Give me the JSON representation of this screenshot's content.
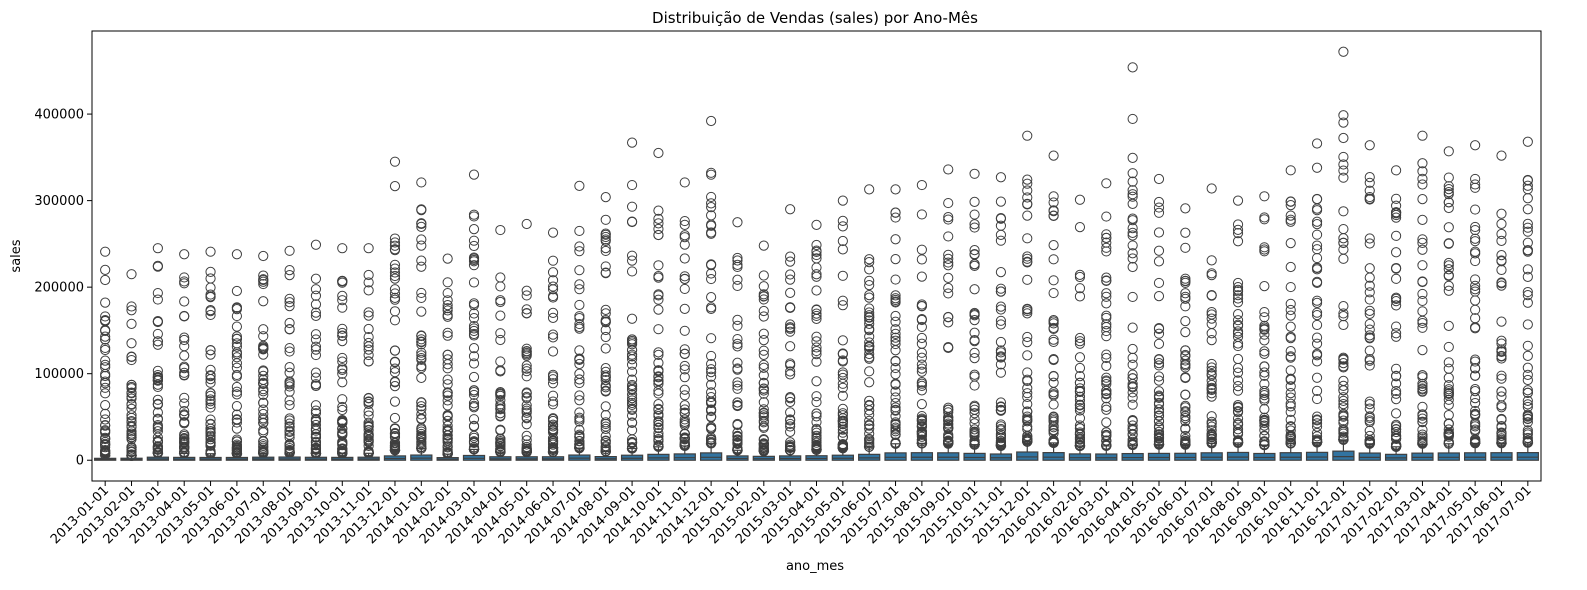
{
  "chart_data": {
    "type": "box",
    "title": "Distribuição de Vendas (sales) por Ano-Mês",
    "xlabel": "ano_mes",
    "ylabel": "sales",
    "ylim": [
      -24000,
      496000
    ],
    "yticks": [
      0,
      100000,
      200000,
      300000,
      400000
    ],
    "ytick_labels": [
      "0",
      "100000",
      "200000",
      "300000",
      "400000"
    ],
    "grid": false,
    "legend": "none",
    "box_color": "#3274a1",
    "line_color": "#3f3f3f",
    "categories": [
      "2013-01-01",
      "2013-02-01",
      "2013-03-01",
      "2013-04-01",
      "2013-05-01",
      "2013-06-01",
      "2013-07-01",
      "2013-08-01",
      "2013-09-01",
      "2013-10-01",
      "2013-11-01",
      "2013-12-01",
      "2014-01-01",
      "2014-02-01",
      "2014-03-01",
      "2014-04-01",
      "2014-05-01",
      "2014-06-01",
      "2014-07-01",
      "2014-08-01",
      "2014-09-01",
      "2014-10-01",
      "2014-11-01",
      "2014-12-01",
      "2015-01-01",
      "2015-02-01",
      "2015-03-01",
      "2015-04-01",
      "2015-05-01",
      "2015-06-01",
      "2015-07-01",
      "2015-08-01",
      "2015-09-01",
      "2015-10-01",
      "2015-11-01",
      "2015-12-01",
      "2016-01-01",
      "2016-02-01",
      "2016-03-01",
      "2016-04-01",
      "2016-05-01",
      "2016-06-01",
      "2016-07-01",
      "2016-08-01",
      "2016-09-01",
      "2016-10-01",
      "2016-11-01",
      "2016-12-01",
      "2017-01-01",
      "2017-02-01",
      "2017-03-01",
      "2017-04-01",
      "2017-05-01",
      "2017-06-01",
      "2017-07-01"
    ],
    "max_outlier": [
      241000,
      215000,
      245000,
      238000,
      241000,
      238000,
      236000,
      242000,
      249000,
      245000,
      245000,
      345000,
      321000,
      233000,
      330000,
      266000,
      273000,
      263000,
      317000,
      304000,
      367000,
      355000,
      321000,
      392000,
      275000,
      248000,
      290000,
      272000,
      300000,
      313000,
      313000,
      318000,
      336000,
      331000,
      327000,
      375000,
      352000,
      301000,
      320000,
      454000,
      325000,
      291000,
      314000,
      300000,
      305000,
      335000,
      366000,
      472000,
      364000,
      335000,
      375000,
      357000,
      364000,
      352000,
      368000
    ],
    "q3": [
      2200,
      2300,
      3500,
      3300,
      3200,
      3200,
      3500,
      3700,
      3400,
      3300,
      3500,
      5000,
      6000,
      3000,
      5500,
      4000,
      4000,
      4000,
      6000,
      4200,
      5800,
      6800,
      7300,
      8500,
      5000,
      4500,
      5000,
      5200,
      5800,
      6800,
      8500,
      8700,
      8600,
      7900,
      7200,
      9500,
      8800,
      7300,
      7200,
      7700,
      7900,
      8000,
      8600,
      9000,
      7800,
      8700,
      9100,
      10500,
      8300,
      6800,
      8200,
      8400,
      8600,
      8700,
      8800
    ],
    "whisker_hi": [
      5000,
      5200,
      8000,
      7800,
      7500,
      7400,
      8000,
      8300,
      7800,
      7600,
      8000,
      11500,
      13500,
      7000,
      12500,
      9500,
      9500,
      9500,
      14000,
      10000,
      13500,
      15500,
      16500,
      19000,
      11500,
      10500,
      11500,
      12000,
      13500,
      15500,
      19000,
      19500,
      19000,
      18000,
      16500,
      21500,
      20000,
      16500,
      16500,
      17500,
      18000,
      18000,
      19500,
      20000,
      17500,
      19500,
      20500,
      23500,
      19000,
      15500,
      18500,
      19000,
      19500,
      19500,
      20000
    ]
  }
}
